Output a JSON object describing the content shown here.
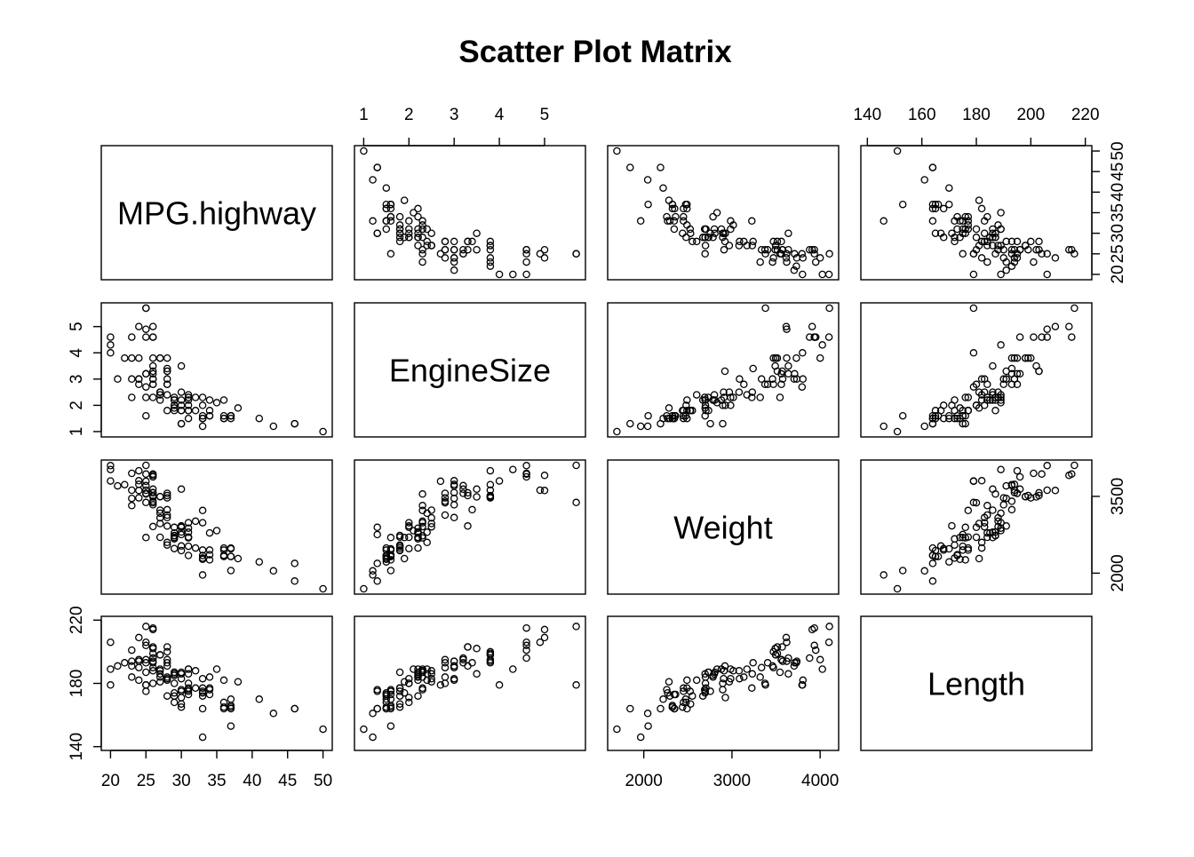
{
  "chart_data": {
    "type": "scatter",
    "title": "Scatter Plot Matrix",
    "variables": [
      {
        "name": "MPG.highway",
        "lim": [
          20,
          50
        ],
        "ticks": [
          20,
          25,
          30,
          35,
          40,
          45,
          50
        ]
      },
      {
        "name": "EngineSize",
        "lim": [
          1,
          5.7
        ],
        "ticks": [
          1,
          2,
          3,
          4,
          5
        ]
      },
      {
        "name": "Weight",
        "lim": [
          1695,
          4105
        ],
        "ticks": [
          2000,
          3000,
          4000
        ],
        "y_ticks": [
          2000,
          3500
        ]
      },
      {
        "name": "Length",
        "lim": [
          141,
          219
        ],
        "ticks": [
          140,
          160,
          180,
          200,
          220
        ],
        "y_ticks": [
          140,
          180,
          220
        ]
      }
    ],
    "axis_placement": {
      "bottom": [
        0,
        2
      ],
      "top": [
        1,
        3
      ],
      "left": [
        1,
        3
      ],
      "right": [
        0,
        2
      ]
    },
    "observations": [
      [
        31,
        1.8,
        2705,
        177
      ],
      [
        25,
        3.2,
        3560,
        195
      ],
      [
        26,
        2.8,
        3375,
        180
      ],
      [
        26,
        2.8,
        3405,
        193
      ],
      [
        30,
        3.5,
        3640,
        186
      ],
      [
        31,
        2.2,
        2880,
        189
      ],
      [
        28,
        3.8,
        3470,
        200
      ],
      [
        25,
        5.7,
        4105,
        216
      ],
      [
        27,
        3.8,
        3495,
        198
      ],
      [
        25,
        4.9,
        3620,
        206
      ],
      [
        25,
        4.6,
        3935,
        204
      ],
      [
        36,
        2.2,
        2490,
        182
      ],
      [
        34,
        2.2,
        2785,
        184
      ],
      [
        28,
        3.4,
        3240,
        193
      ],
      [
        29,
        2.2,
        2695,
        186
      ],
      [
        23,
        3.8,
        3620,
        194
      ],
      [
        20,
        4.3,
        4025,
        189
      ],
      [
        26,
        5.0,
        3910,
        214
      ],
      [
        25,
        5.7,
        3380,
        179
      ],
      [
        28,
        3.3,
        3515,
        203
      ],
      [
        28,
        3.0,
        3085,
        183
      ],
      [
        26,
        3.3,
        3570,
        203
      ],
      [
        33,
        1.5,
        2270,
        174
      ],
      [
        29,
        2.2,
        2670,
        172
      ],
      [
        27,
        2.5,
        2970,
        181
      ],
      [
        21,
        3.0,
        3705,
        191
      ],
      [
        27,
        2.5,
        3080,
        188
      ],
      [
        24,
        3.0,
        3805,
        182
      ],
      [
        33,
        1.5,
        2295,
        172
      ],
      [
        26,
        3.5,
        3490,
        202
      ],
      [
        46,
        1.3,
        1845,
        164
      ],
      [
        30,
        1.8,
        2530,
        167
      ],
      [
        31,
        2.3,
        2690,
        176
      ],
      [
        26,
        3.8,
        3515,
        199
      ],
      [
        24,
        2.8,
        3470,
        190
      ],
      [
        20,
        4.0,
        3800,
        179
      ],
      [
        20,
        4.6,
        4100,
        206
      ],
      [
        24,
        5.0,
        3615,
        209
      ],
      [
        50,
        1.0,
        1695,
        151
      ],
      [
        36,
        1.6,
        2350,
        164
      ],
      [
        31,
        1.5,
        2345,
        173
      ],
      [
        46,
        1.3,
        2190,
        164
      ],
      [
        33,
        2.3,
        3225,
        177
      ],
      [
        33,
        1.5,
        2345,
        164
      ],
      [
        29,
        2.0,
        2480,
        168
      ],
      [
        28,
        1.8,
        2550,
        172
      ],
      [
        36,
        1.5,
        2450,
        168
      ],
      [
        27,
        2.2,
        2700,
        184
      ],
      [
        26,
        3.0,
        3575,
        194
      ],
      [
        26,
        4.6,
        3935,
        215
      ],
      [
        24,
        3.8,
        4000,
        195
      ],
      [
        26,
        4.6,
        3880,
        196
      ],
      [
        37,
        1.6,
        2325,
        165
      ],
      [
        34,
        1.8,
        2450,
        177
      ],
      [
        30,
        2.5,
        2905,
        183
      ],
      [
        24,
        3.0,
        3735,
        194
      ],
      [
        30,
        1.3,
        2895,
        176
      ],
      [
        25,
        2.3,
        3545,
        187
      ],
      [
        26,
        3.2,
        3640,
        196
      ],
      [
        33,
        1.6,
        2450,
        175
      ],
      [
        22,
        3.8,
        3730,
        193
      ],
      [
        34,
        1.6,
        2260,
        176
      ],
      [
        25,
        3.2,
        3710,
        193
      ],
      [
        34,
        1.6,
        2360,
        173
      ],
      [
        37,
        1.6,
        2475,
        170
      ],
      [
        31,
        2.4,
        2800,
        186
      ],
      [
        26,
        3.0,
        3335,
        190
      ],
      [
        29,
        2.2,
        2785,
        185
      ],
      [
        27,
        2.4,
        3170,
        189
      ],
      [
        28,
        3.3,
        2920,
        191
      ],
      [
        32,
        1.8,
        2490,
        177
      ],
      [
        36,
        1.5,
        2325,
        165
      ],
      [
        37,
        1.6,
        2325,
        166
      ],
      [
        26,
        2.3,
        2910,
        188
      ],
      [
        29,
        1.9,
        2695,
        174
      ],
      [
        27,
        3.8,
        3495,
        198
      ],
      [
        29,
        1.8,
        2735,
        187
      ],
      [
        30,
        1.3,
        2755,
        175
      ],
      [
        23,
        4.6,
        3950,
        201
      ],
      [
        28,
        2.8,
        3135,
        184
      ],
      [
        30,
        2.0,
        2925,
        171
      ],
      [
        29,
        2.3,
        2730,
        187
      ],
      [
        33,
        1.2,
        1965,
        146
      ],
      [
        37,
        1.5,
        2490,
        164
      ],
      [
        41,
        1.5,
        2220,
        170
      ],
      [
        31,
        1.8,
        2525,
        175
      ],
      [
        30,
        2.2,
        2805,
        187
      ],
      [
        25,
        2.7,
        3795,
        179
      ],
      [
        30,
        1.8,
        2440,
        165
      ],
      [
        33,
        2.0,
        2985,
        183
      ],
      [
        23,
        2.3,
        3320,
        184
      ],
      [
        27,
        2.5,
        3230,
        186
      ],
      [
        32,
        2.3,
        3015,
        188
      ],
      [
        28,
        2.4,
        2600,
        182
      ],
      [
        31,
        2.0,
        2700,
        180
      ],
      [
        35,
        2.1,
        2830,
        189
      ],
      [
        43,
        1.2,
        2045,
        161
      ],
      [
        37,
        1.6,
        2050,
        153
      ],
      [
        28,
        2.8,
        3560,
        195
      ],
      [
        29,
        2.0,
        2895,
        180
      ],
      [
        25,
        1.6,
        2695,
        175
      ],
      [
        23,
        3.0,
        3460,
        191
      ],
      [
        31,
        2.3,
        2985,
        189
      ],
      [
        38,
        1.9,
        2285,
        181
      ]
    ]
  }
}
